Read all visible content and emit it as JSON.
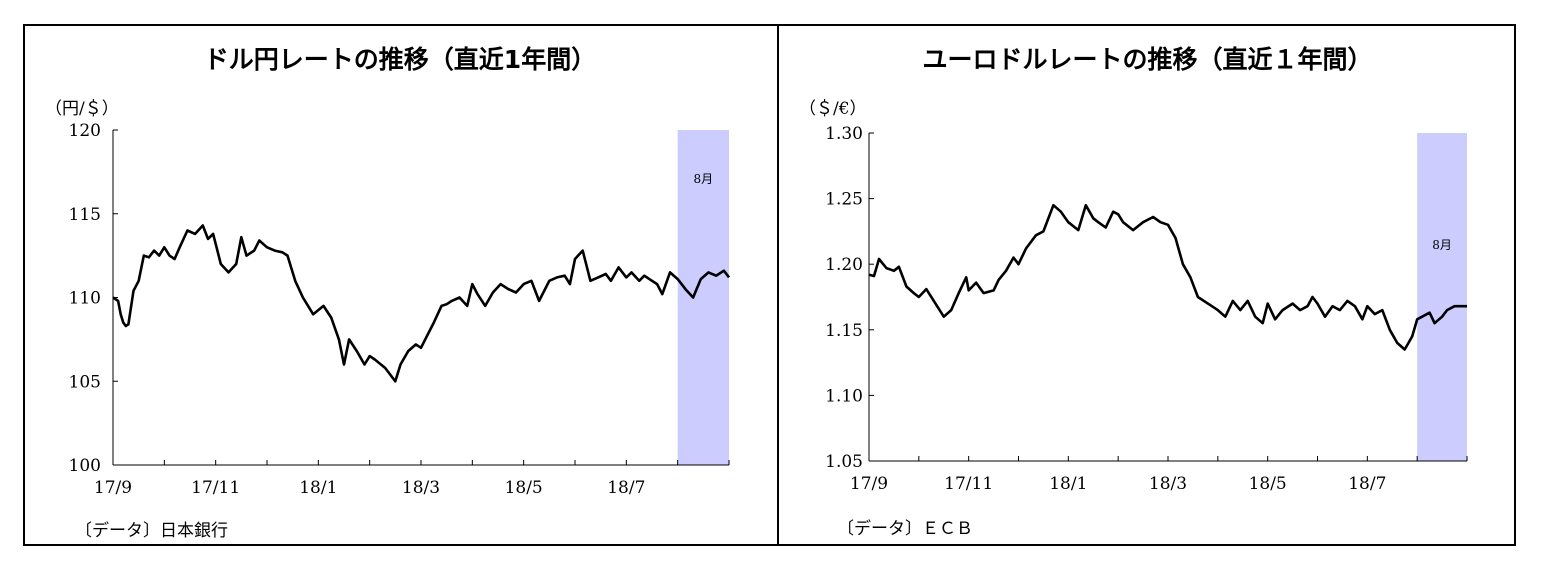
{
  "chart_data": [
    {
      "type": "line",
      "title": "ドル円レートの推移（直近1年間）",
      "ylabel": "（円/＄）",
      "xlabel": "",
      "ylim": [
        100,
        120
      ],
      "yticks": [
        "120",
        "115",
        "110",
        "105",
        "100"
      ],
      "x_tick_labels": [
        "17/9",
        "17/11",
        "18/1",
        "18/3",
        "18/5",
        "18/7"
      ],
      "highlight": {
        "label": "8月",
        "start_month": 11,
        "end_month": 12,
        "color": "#ccccff"
      },
      "series": [
        {
          "name": "ドル円",
          "x": [
            0,
            0.1,
            0.15,
            0.2,
            0.25,
            0.3,
            0.4,
            0.5,
            0.6,
            0.7,
            0.8,
            0.9,
            1.0,
            1.1,
            1.2,
            1.3,
            1.45,
            1.6,
            1.75,
            1.85,
            1.95,
            2.0,
            2.1,
            2.25,
            2.4,
            2.5,
            2.6,
            2.75,
            2.85,
            3.0,
            3.15,
            3.3,
            3.4,
            3.55,
            3.7,
            3.9,
            4.1,
            4.25,
            4.4,
            4.5,
            4.6,
            4.75,
            4.9,
            5.0,
            5.1,
            5.3,
            5.5,
            5.6,
            5.75,
            5.9,
            6.0,
            6.1,
            6.25,
            6.4,
            6.5,
            6.6,
            6.75,
            6.9,
            7.0,
            7.1,
            7.25,
            7.4,
            7.55,
            7.7,
            7.85,
            8.0,
            8.15,
            8.3,
            8.5,
            8.65,
            8.8,
            8.9,
            9.0,
            9.15,
            9.3,
            9.45,
            9.6,
            9.7,
            9.85,
            10.0,
            10.1,
            10.25,
            10.35,
            10.5,
            10.6,
            10.7,
            10.85,
            11.0,
            11.15,
            11.3,
            11.45,
            11.6,
            11.75,
            11.9,
            12.0
          ],
          "values": [
            110,
            109.8,
            109.0,
            108.5,
            108.3,
            108.4,
            110.4,
            111.0,
            112.5,
            112.4,
            112.8,
            112.5,
            113.0,
            112.5,
            112.3,
            113.0,
            114.0,
            113.8,
            114.3,
            113.5,
            113.8,
            113.2,
            112.0,
            111.5,
            112.0,
            113.6,
            112.5,
            112.8,
            113.4,
            113.0,
            112.8,
            112.7,
            112.5,
            111.0,
            110.0,
            109.0,
            109.5,
            108.8,
            107.5,
            106.0,
            107.5,
            106.8,
            106.0,
            106.5,
            106.3,
            105.8,
            105.0,
            106.0,
            106.8,
            107.2,
            107.0,
            107.6,
            108.5,
            109.5,
            109.6,
            109.8,
            110.0,
            109.5,
            110.8,
            110.2,
            109.5,
            110.3,
            110.8,
            110.5,
            110.3,
            110.8,
            111.0,
            109.8,
            111.0,
            111.2,
            111.3,
            110.8,
            112.3,
            112.8,
            111.0,
            111.2,
            111.4,
            111.0,
            111.8,
            111.2,
            111.5,
            111.0,
            111.3,
            111.0,
            110.8,
            110.2,
            111.5,
            111.1,
            110.5,
            110.0,
            111.1,
            111.5,
            111.3,
            111.6,
            111.2
          ]
        }
      ]
    },
    {
      "type": "line",
      "title": "ユーロドルレートの推移（直近１年間）",
      "ylabel": "（＄/€）",
      "xlabel": "",
      "ylim": [
        1.05,
        1.3
      ],
      "yticks": [
        "1.30",
        "1.25",
        "1.20",
        "1.15",
        "1.10",
        "1.05"
      ],
      "x_tick_labels": [
        "17/9",
        "17/11",
        "18/1",
        "18/3",
        "18/5",
        "18/7"
      ],
      "highlight": {
        "label": "8月",
        "start_month": 11,
        "end_month": 12,
        "color": "#ccccff"
      },
      "series": [
        {
          "name": "ユーロドル",
          "x": [
            0,
            0.1,
            0.2,
            0.35,
            0.5,
            0.6,
            0.75,
            0.9,
            1.0,
            1.15,
            1.3,
            1.5,
            1.65,
            1.8,
            1.95,
            2.0,
            2.15,
            2.3,
            2.5,
            2.6,
            2.75,
            2.9,
            3.0,
            3.15,
            3.35,
            3.5,
            3.7,
            3.85,
            4.0,
            4.2,
            4.35,
            4.5,
            4.6,
            4.75,
            4.9,
            5.0,
            5.1,
            5.3,
            5.5,
            5.7,
            5.85,
            6.0,
            6.15,
            6.3,
            6.45,
            6.6,
            6.8,
            7.0,
            7.15,
            7.3,
            7.45,
            7.6,
            7.75,
            7.9,
            8.0,
            8.15,
            8.3,
            8.5,
            8.65,
            8.8,
            8.9,
            9.0,
            9.15,
            9.3,
            9.45,
            9.6,
            9.75,
            9.9,
            10.0,
            10.15,
            10.3,
            10.45,
            10.6,
            10.75,
            10.9,
            11.0,
            11.1,
            11.25,
            11.35,
            11.5,
            11.6,
            11.75,
            11.85,
            12.0
          ],
          "values": [
            1.192,
            1.191,
            1.204,
            1.197,
            1.195,
            1.198,
            1.183,
            1.178,
            1.175,
            1.181,
            1.172,
            1.16,
            1.165,
            1.178,
            1.19,
            1.18,
            1.186,
            1.178,
            1.18,
            1.188,
            1.195,
            1.205,
            1.2,
            1.212,
            1.222,
            1.225,
            1.245,
            1.24,
            1.232,
            1.226,
            1.245,
            1.235,
            1.232,
            1.228,
            1.24,
            1.238,
            1.232,
            1.226,
            1.232,
            1.236,
            1.232,
            1.23,
            1.22,
            1.2,
            1.19,
            1.175,
            1.17,
            1.165,
            1.16,
            1.172,
            1.165,
            1.172,
            1.16,
            1.155,
            1.17,
            1.158,
            1.165,
            1.17,
            1.165,
            1.168,
            1.175,
            1.17,
            1.16,
            1.168,
            1.165,
            1.172,
            1.168,
            1.158,
            1.168,
            1.162,
            1.165,
            1.15,
            1.14,
            1.135,
            1.145,
            1.158,
            1.16,
            1.163,
            1.155,
            1.16,
            1.165,
            1.168,
            1.168,
            1.168
          ]
        }
      ]
    }
  ],
  "source_left": "〔データ〕日本銀行",
  "source_right": "〔データ〕ＥＣＢ"
}
